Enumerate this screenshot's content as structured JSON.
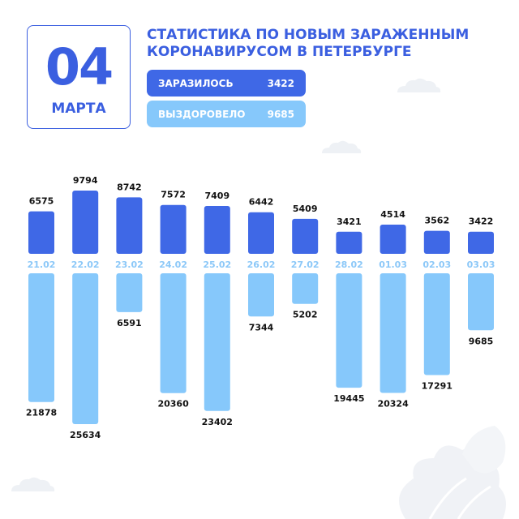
{
  "header": {
    "day": "04",
    "month": "МАРТА",
    "title_line1": "СТАТИСТИКА ПО НОВЫМ ЗАРАЖЕННЫМ",
    "title_line2": "КОРОНАВИРУСОМ В ПЕТЕРБУРГЕ"
  },
  "legend": {
    "infected_label": "ЗАРАЗИЛОСЬ",
    "infected_value": "3422",
    "recovered_label": "ВЫЗДОРОВЕЛО",
    "recovered_value": "9685"
  },
  "colors": {
    "accent": "#3b5fe0",
    "infected": "#3f68e6",
    "recovered": "#86c8fb",
    "date_label": "#8cc8f8",
    "decor": "#eef1f5"
  },
  "chart_data": {
    "type": "bar",
    "categories": [
      "21.02",
      "22.02",
      "23.02",
      "24.02",
      "25.02",
      "26.02",
      "27.02",
      "28.02",
      "01.03",
      "02.03",
      "03.03"
    ],
    "series": [
      {
        "name": "ЗАРАЗИЛОСЬ",
        "values": [
          6575,
          9794,
          8742,
          7572,
          7409,
          6442,
          5409,
          3421,
          4514,
          3562,
          3422
        ]
      },
      {
        "name": "ВЫЗДОРОВЕЛО",
        "values": [
          21878,
          25634,
          6591,
          20360,
          23402,
          7344,
          5202,
          19445,
          20324,
          17291,
          9685
        ]
      }
    ],
    "layout": "infected bars above baseline, recovered bars hanging below",
    "grid": false
  }
}
